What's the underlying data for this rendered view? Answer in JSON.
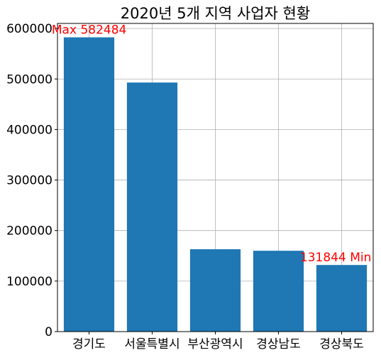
{
  "chart_data": {
    "type": "bar",
    "title": "2020년 5개 지역 사업자 현황",
    "xlabel": "",
    "ylabel": "",
    "categories": [
      "경기도",
      "서울특별시",
      "부산광역시",
      "경상남도",
      "경상북도"
    ],
    "values": [
      582484,
      493000,
      163000,
      160000,
      131844
    ],
    "ylim": [
      0,
      610000
    ],
    "yticks": [
      0,
      100000,
      200000,
      300000,
      400000,
      500000,
      600000
    ],
    "ytick_labels": [
      "0",
      "100000",
      "200000",
      "300000",
      "400000",
      "500000",
      "600000"
    ],
    "grid": true,
    "bar_color": "#1f77b4",
    "annotations": [
      {
        "text": "Max 582484",
        "category": "경기도",
        "value": 582484,
        "color": "#ff0000"
      },
      {
        "text": "131844 Min",
        "category": "경상북도",
        "value": 131844,
        "color": "#ff0000"
      }
    ]
  }
}
